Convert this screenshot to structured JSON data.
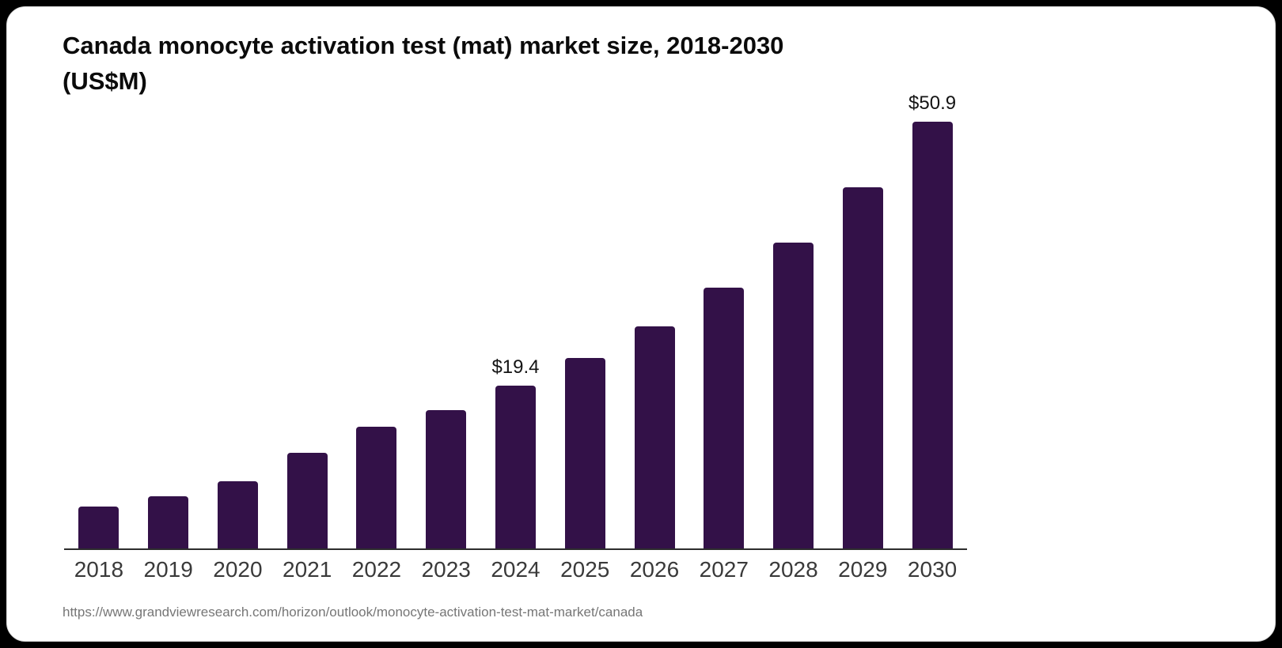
{
  "page": {
    "background_color": "#000000",
    "card_background_color": "#ffffff"
  },
  "title_lines": [
    "Canada monocyte activation test (mat) market size, 2018-2030",
    "(US$M)"
  ],
  "source_url": "https://www.grandviewresearch.com/horizon/outlook/monocyte-activation-test-mat-market/canada",
  "chart_data": {
    "type": "bar",
    "title": "Canada monocyte activation test (mat) market size, 2018-2030 (US$M)",
    "unit": "US$M",
    "categories": [
      "2018",
      "2019",
      "2020",
      "2021",
      "2022",
      "2023",
      "2024",
      "2025",
      "2026",
      "2027",
      "2028",
      "2029",
      "2030"
    ],
    "values": [
      5.0,
      6.2,
      8.0,
      11.4,
      14.5,
      16.5,
      19.4,
      22.7,
      26.5,
      31.1,
      36.5,
      43.1,
      50.9
    ],
    "bar_labels": [
      "",
      "",
      "",
      "",
      "",
      "",
      "$19.4",
      "",
      "",
      "",
      "",
      "",
      "$50.9"
    ],
    "bar_color": "#331148",
    "axis_color": "#2d2d2d",
    "tick_color": "#3a3a3a",
    "value_label_color": "#141414",
    "ylim": [
      0,
      53
    ],
    "grid": false,
    "legend": false,
    "xlabel": "",
    "ylabel": ""
  }
}
